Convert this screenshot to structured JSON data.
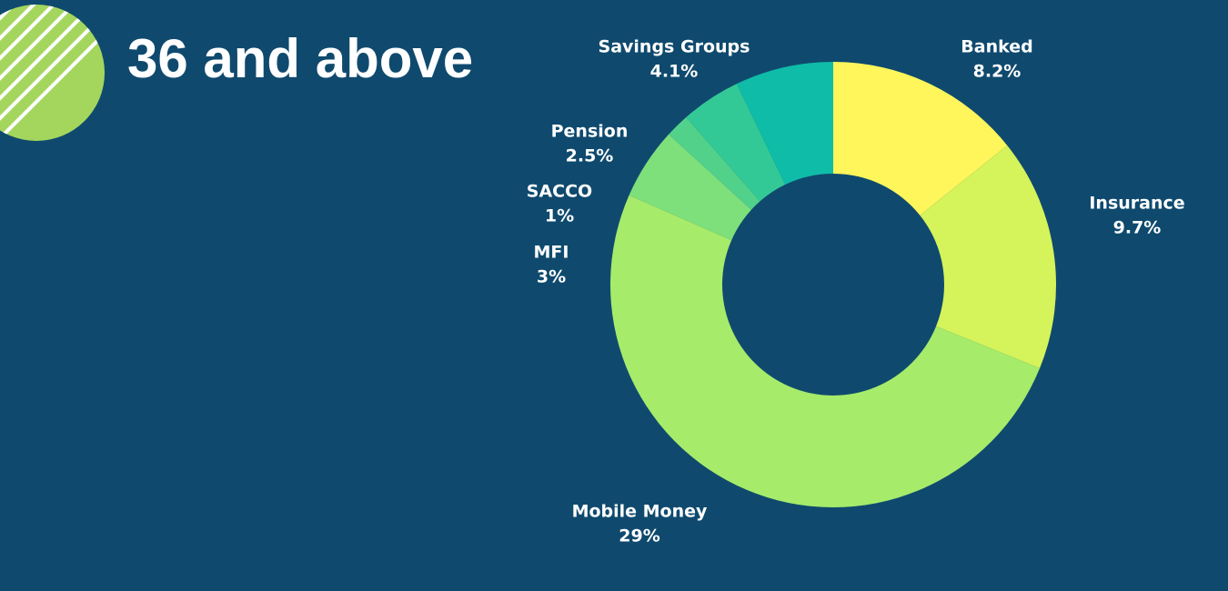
{
  "page": {
    "title": "36 and above",
    "background": "#0f4a6e",
    "accent": "#a4d65e"
  },
  "chart_data": {
    "type": "pie",
    "variant": "donut",
    "title": "36 and above",
    "legend": "none",
    "slices": [
      {
        "label": "Banked",
        "value_label": "8.2%",
        "value": 8.2,
        "color": "#fef65b"
      },
      {
        "label": "Insurance",
        "value_label": "9.7%",
        "value": 9.7,
        "color": "#d5f35a"
      },
      {
        "label": "Mobile Money",
        "value_label": "29%",
        "value": 29,
        "color": "#a6eb6a"
      },
      {
        "label": "MFI",
        "value_label": "3%",
        "value": 3,
        "color": "#7ee07b"
      },
      {
        "label": "SACCO",
        "value_label": "1%",
        "value": 1,
        "color": "#52d18a"
      },
      {
        "label": "Pension",
        "value_label": "2.5%",
        "value": 2.5,
        "color": "#33c997"
      },
      {
        "label": "Savings Groups",
        "value_label": "4.1%",
        "value": 4.1,
        "color": "#0fbca8"
      }
    ]
  }
}
